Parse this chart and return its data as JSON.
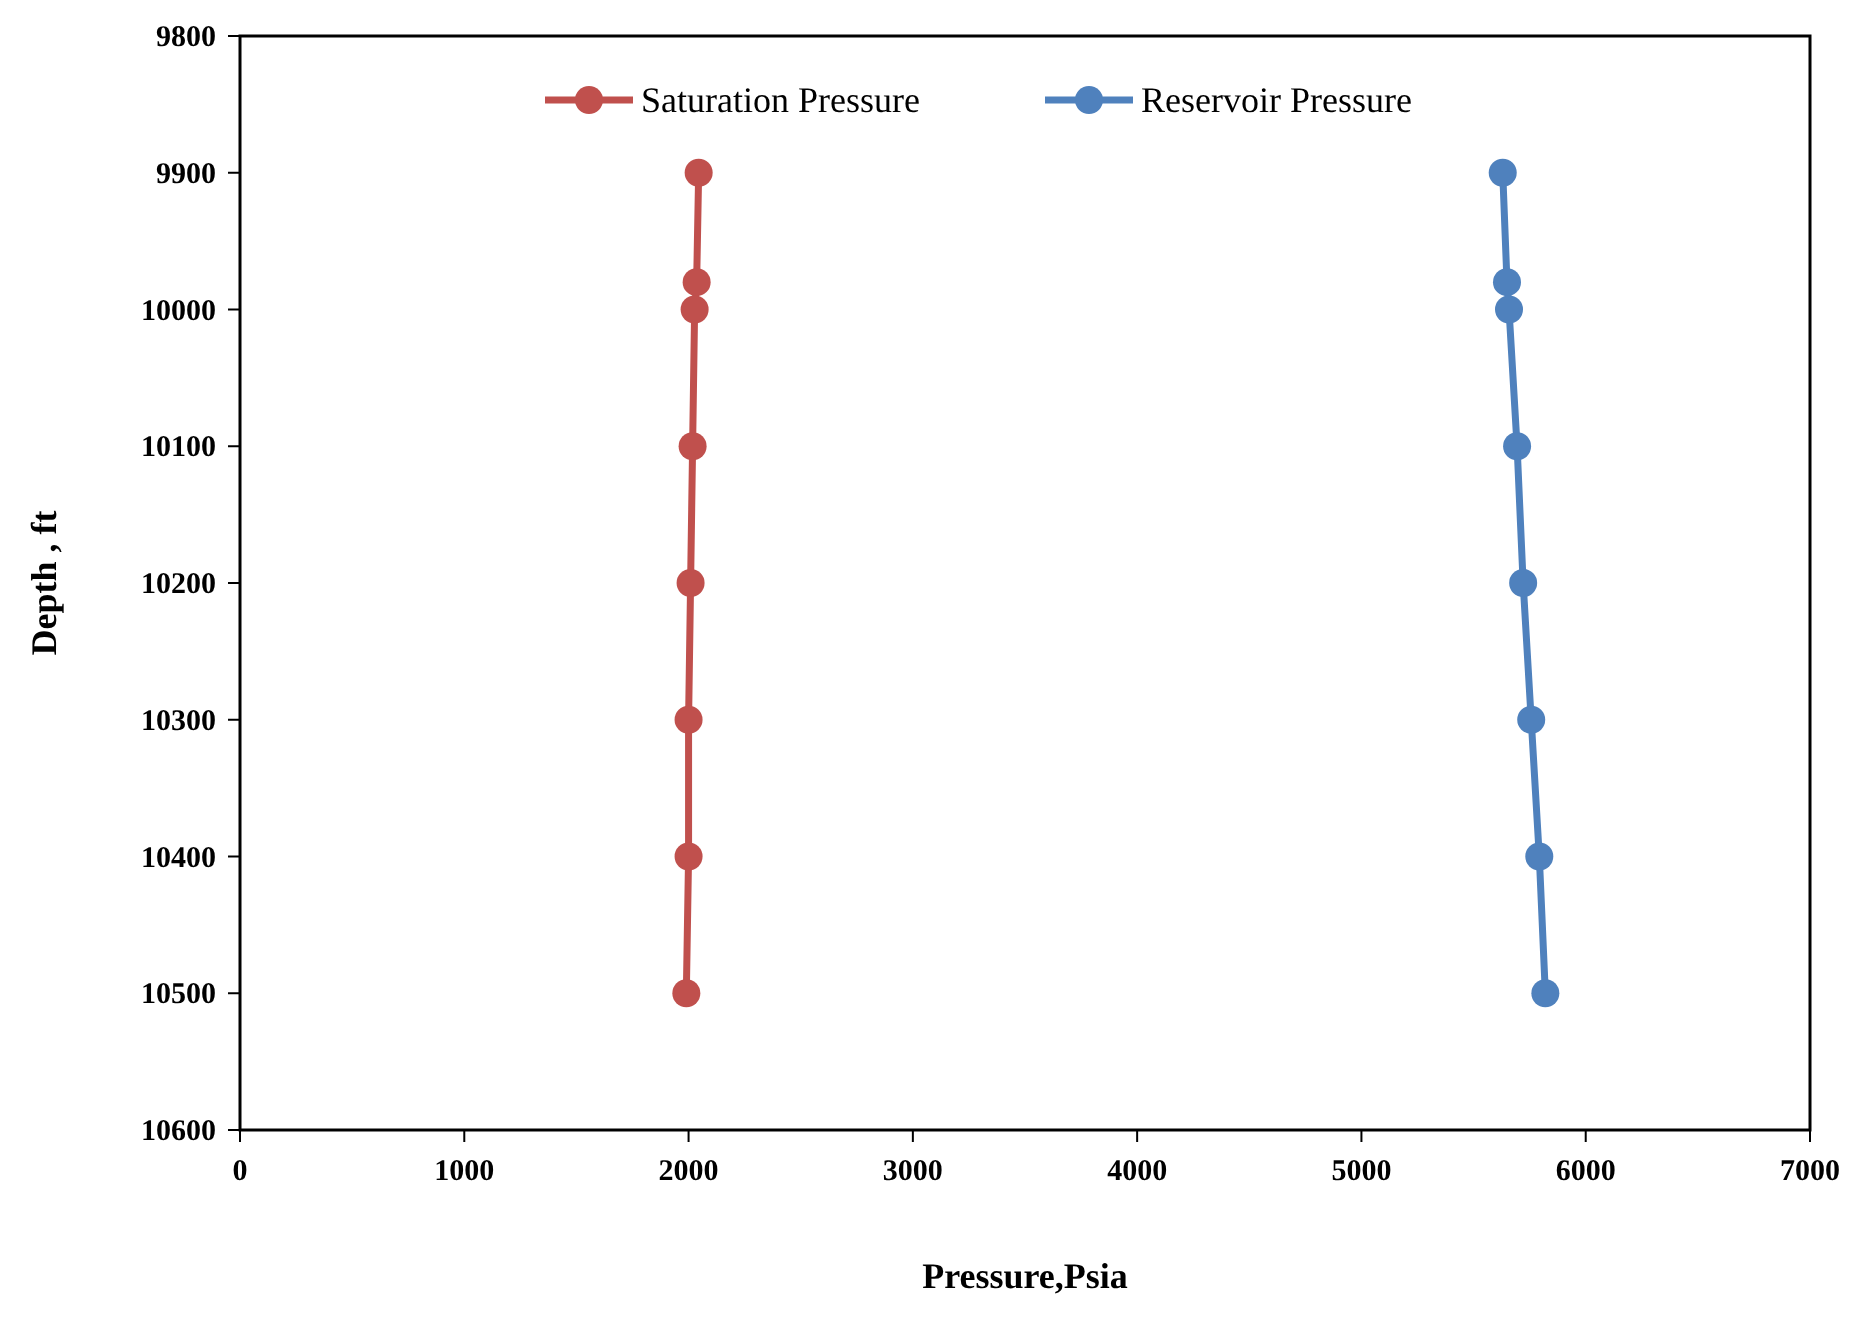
{
  "chart_data": {
    "type": "line",
    "xlabel": "Pressure,Psia",
    "ylabel": "Depth , ft",
    "xlim": [
      0,
      7000
    ],
    "xticks": [
      0,
      1000,
      2000,
      3000,
      4000,
      5000,
      6000,
      7000
    ],
    "ylim": [
      10600,
      9800
    ],
    "yticks": [
      9800,
      9900,
      10000,
      10100,
      10200,
      10300,
      10400,
      10500,
      10600
    ],
    "grid": false,
    "legend": "top",
    "marker": "circle",
    "line_style": "solid",
    "series": [
      {
        "name": "Saturation Pressure",
        "color": "#c0504d",
        "x": [
          2045,
          2036,
          2027,
          2018,
          2009,
          2000,
          2000,
          1990
        ],
        "values": [
          9900,
          9980,
          10000,
          10100,
          10200,
          10300,
          10400,
          10500
        ]
      },
      {
        "name": "Reservoir Pressure",
        "color": "#4f81bd",
        "x": [
          5630,
          5649,
          5658,
          5694,
          5721,
          5757,
          5793,
          5820
        ],
        "values": [
          9900,
          9980,
          10000,
          10100,
          10200,
          10300,
          10400,
          10500
        ]
      }
    ]
  }
}
